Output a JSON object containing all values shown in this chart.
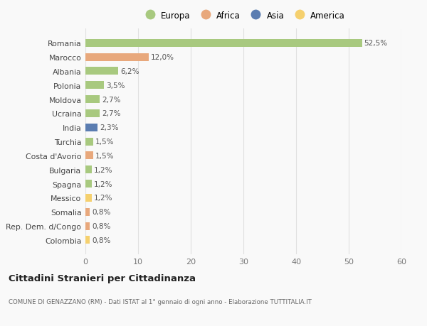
{
  "countries": [
    "Romania",
    "Marocco",
    "Albania",
    "Polonia",
    "Moldova",
    "Ucraina",
    "India",
    "Turchia",
    "Costa d'Avorio",
    "Bulgaria",
    "Spagna",
    "Messico",
    "Somalia",
    "Rep. Dem. d/Congo",
    "Colombia"
  ],
  "values": [
    52.5,
    12.0,
    6.2,
    3.5,
    2.7,
    2.7,
    2.3,
    1.5,
    1.5,
    1.2,
    1.2,
    1.2,
    0.8,
    0.8,
    0.8
  ],
  "labels": [
    "52,5%",
    "12,0%",
    "6,2%",
    "3,5%",
    "2,7%",
    "2,7%",
    "2,3%",
    "1,5%",
    "1,5%",
    "1,2%",
    "1,2%",
    "1,2%",
    "0,8%",
    "0,8%",
    "0,8%"
  ],
  "continents": [
    "Europa",
    "Africa",
    "Europa",
    "Europa",
    "Europa",
    "Europa",
    "Asia",
    "Europa",
    "Africa",
    "Europa",
    "Europa",
    "America",
    "Africa",
    "Africa",
    "America"
  ],
  "continent_colors": {
    "Europa": "#a8c97f",
    "Africa": "#e8a87c",
    "Asia": "#5b7db1",
    "America": "#f5d06e"
  },
  "legend_order": [
    "Europa",
    "Africa",
    "Asia",
    "America"
  ],
  "title": "Cittadini Stranieri per Cittadinanza",
  "subtitle": "COMUNE DI GENAZZANO (RM) - Dati ISTAT al 1° gennaio di ogni anno - Elaborazione TUTTITALIA.IT",
  "xlim": [
    0,
    60
  ],
  "xticks": [
    0,
    10,
    20,
    30,
    40,
    50,
    60
  ],
  "background_color": "#f9f9f9",
  "grid_color": "#e0e0e0",
  "bar_height": 0.55
}
